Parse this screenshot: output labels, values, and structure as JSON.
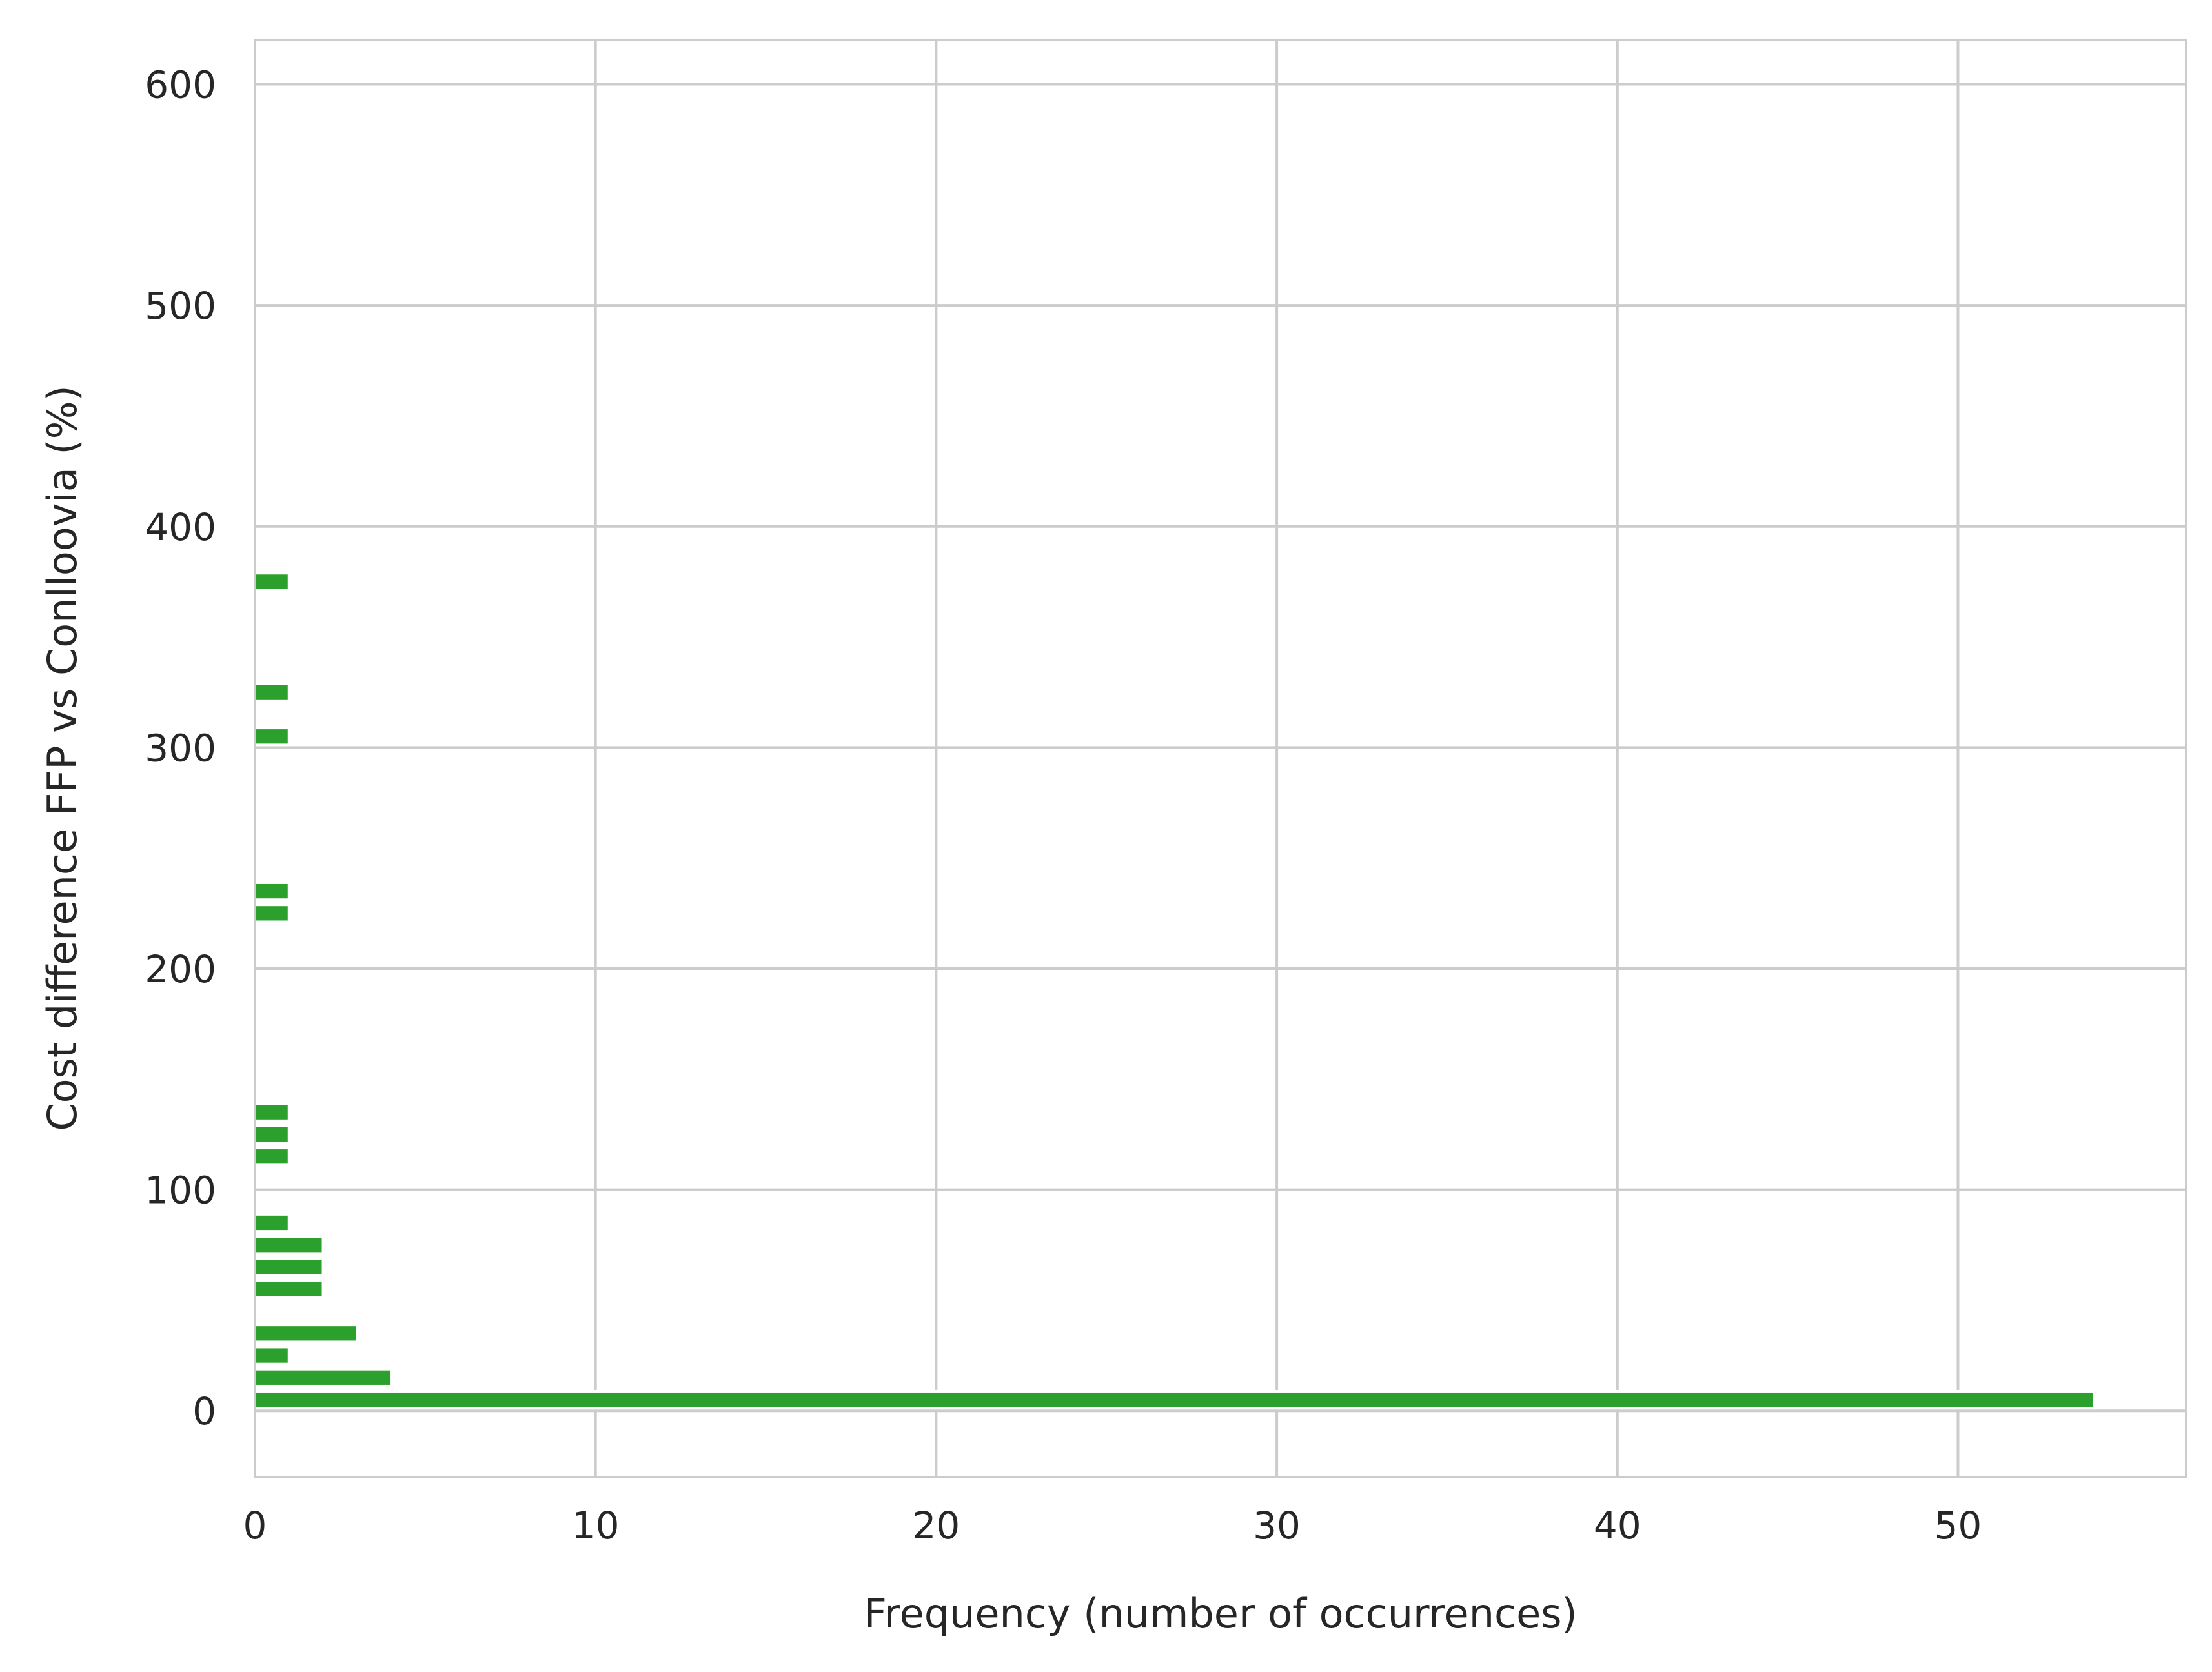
{
  "chart_data": {
    "type": "bar",
    "orientation": "horizontal",
    "title": "",
    "xlabel": "Frequency (number of occurrences)",
    "ylabel": "Cost difference FFP vs Conlloovia (%)",
    "xlim": [
      0,
      56.7
    ],
    "ylim": [
      -30,
      620
    ],
    "xticks": [
      0,
      10,
      20,
      30,
      40,
      50
    ],
    "yticks": [
      0,
      100,
      200,
      300,
      400,
      500,
      600
    ],
    "grid": true,
    "bar_color": "#2ca02c",
    "bin_width": 10,
    "bars": [
      {
        "y": 0,
        "value": 54
      },
      {
        "y": 10,
        "value": 4
      },
      {
        "y": 20,
        "value": 1
      },
      {
        "y": 30,
        "value": 3
      },
      {
        "y": 50,
        "value": 2
      },
      {
        "y": 60,
        "value": 2
      },
      {
        "y": 70,
        "value": 2
      },
      {
        "y": 80,
        "value": 1
      },
      {
        "y": 110,
        "value": 1
      },
      {
        "y": 120,
        "value": 1
      },
      {
        "y": 130,
        "value": 1
      },
      {
        "y": 220,
        "value": 1
      },
      {
        "y": 230,
        "value": 1
      },
      {
        "y": 300,
        "value": 1
      },
      {
        "y": 320,
        "value": 1
      },
      {
        "y": 370,
        "value": 1
      }
    ]
  }
}
